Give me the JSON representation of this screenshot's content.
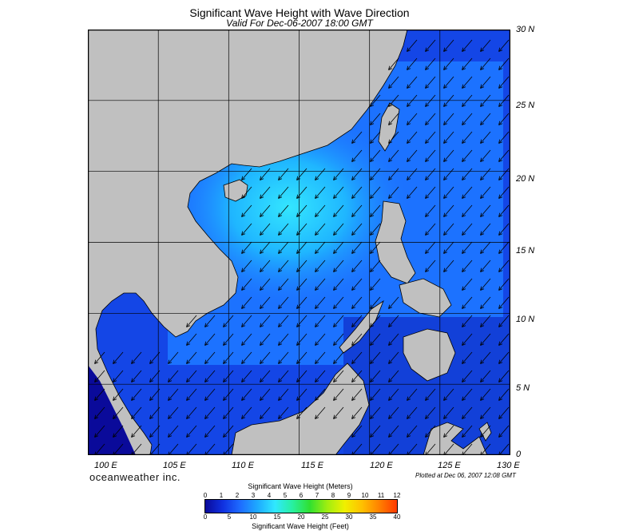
{
  "title": "Significant Wave Height with Wave Direction",
  "subtitle": "Valid For Dec-06-2007 18:00 GMT",
  "latitude_labels": [
    "30 N",
    "25 N",
    "20 N",
    "15 N",
    "10 N",
    "5 N",
    "0"
  ],
  "longitude_labels": [
    "100 E",
    "105 E",
    "110 E",
    "115 E",
    "120 E",
    "125 E",
    "130 E"
  ],
  "brand": "oceanweather inc.",
  "plotted_at": "Plotted at Dec 06, 2007 12:08 GMT",
  "legend": {
    "meters_title": "Significant Wave Height (Meters)",
    "feet_title": "Significant Wave Height (Feet)",
    "meters_ticks": [
      "0",
      "1",
      "2",
      "3",
      "4",
      "5",
      "6",
      "7",
      "8",
      "9",
      "10",
      "11",
      "12"
    ],
    "feet_ticks": [
      "0",
      "5",
      "10",
      "15",
      "20",
      "25",
      "30",
      "35",
      "40"
    ],
    "colors": [
      "#0a0a9a",
      "#1030e0",
      "#1e6cff",
      "#1eaaff",
      "#30e8ff",
      "#28f0a0",
      "#30e030",
      "#a0ee10",
      "#f0f000",
      "#ffc000",
      "#ff8000",
      "#ff3a00"
    ]
  },
  "map_colors": {
    "land": "#c0c0c0",
    "water_low": "#1037d8",
    "water_mid": "#1f7fff",
    "water_high": "#2cd0ff",
    "coast": "#000000"
  }
}
